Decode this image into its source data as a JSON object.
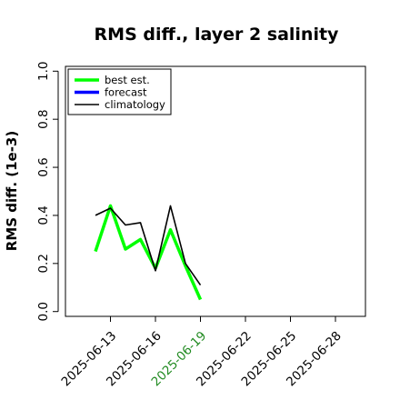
{
  "chart_data": {
    "type": "line",
    "title": "RMS diff., layer 2 salinity",
    "xlabel": "",
    "ylabel": "RMS diff. (1e-3)",
    "xlim": [
      "2025-06-10",
      "2025-06-30"
    ],
    "ylim": [
      -0.02,
      1.02
    ],
    "x_ticks": [
      "2025-06-13",
      "2025-06-16",
      "2025-06-19",
      "2025-06-22",
      "2025-06-25",
      "2025-06-28"
    ],
    "highlight_tick": "2025-06-19",
    "highlight_color": "#228B22",
    "y_ticks": [
      0.0,
      0.2,
      0.4,
      0.6,
      0.8,
      1.0
    ],
    "y_tick_labels": [
      "0.0",
      "0.2",
      "0.4",
      "0.6",
      "0.8",
      "1.0"
    ],
    "grid": false,
    "legend_position": "top-left",
    "series": [
      {
        "name": "best est.",
        "color": "#00ff00",
        "x": [
          "2025-06-12",
          "2025-06-13",
          "2025-06-14",
          "2025-06-15",
          "2025-06-16",
          "2025-06-17",
          "2025-06-18",
          "2025-06-19"
        ],
        "values": [
          0.25,
          0.44,
          0.26,
          0.3,
          0.18,
          0.34,
          0.19,
          0.05
        ]
      },
      {
        "name": "forecast",
        "color": "#0000ff",
        "x": [],
        "values": []
      },
      {
        "name": "climatology",
        "color": "#000000",
        "x": [
          "2025-06-12",
          "2025-06-13",
          "2025-06-14",
          "2025-06-15",
          "2025-06-16",
          "2025-06-17",
          "2025-06-18",
          "2025-06-19"
        ],
        "values": [
          0.4,
          0.43,
          0.36,
          0.37,
          0.17,
          0.44,
          0.2,
          0.11
        ]
      }
    ]
  }
}
